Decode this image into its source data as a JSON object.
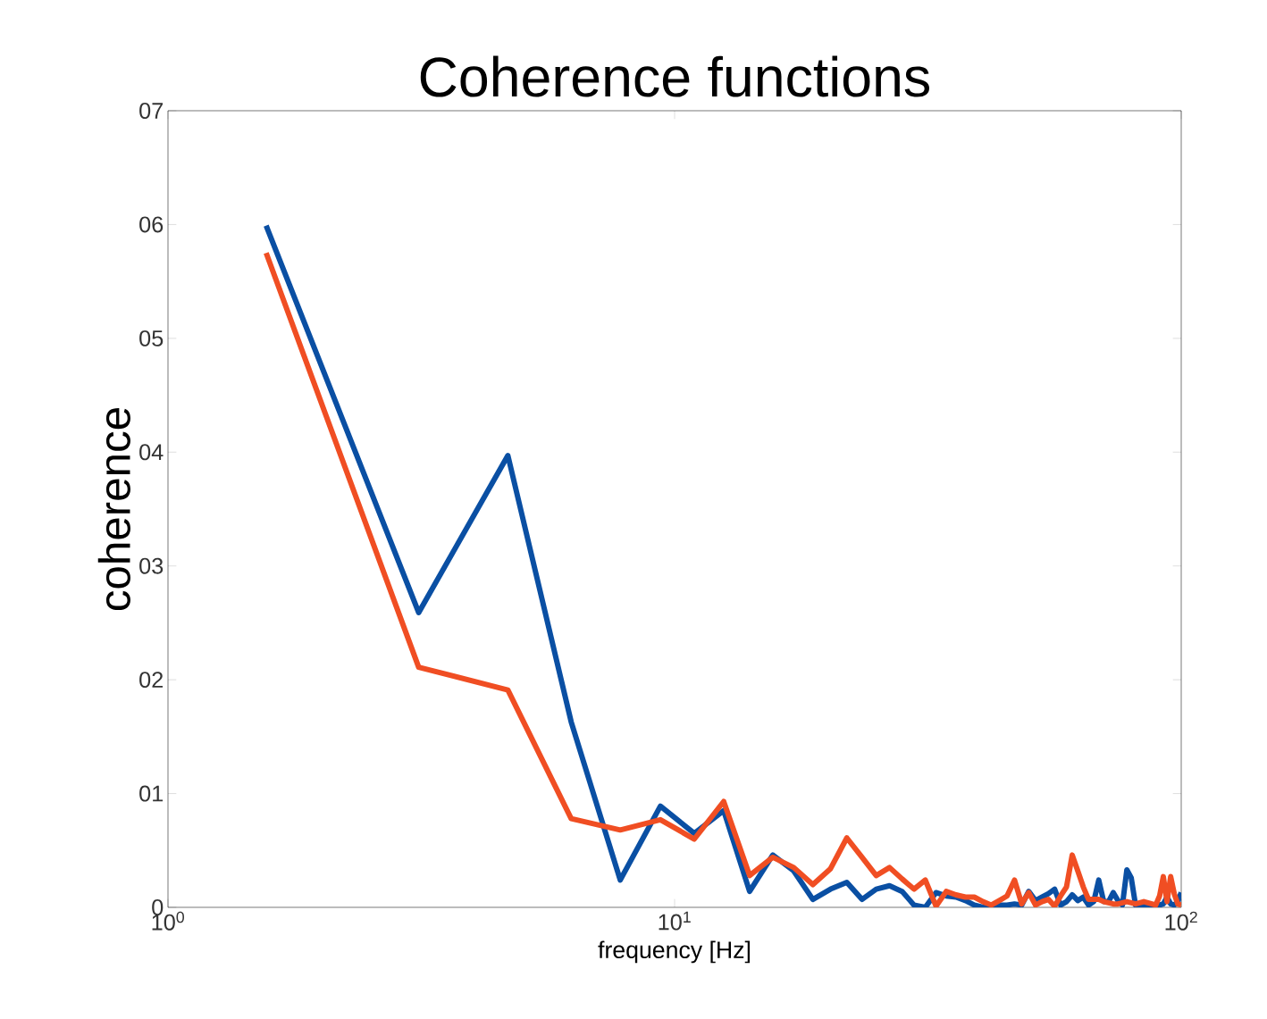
{
  "chart_data": {
    "type": "line",
    "title": "Coherence functions",
    "xlabel": "frequency [Hz]",
    "ylabel": "coherence",
    "log": "x",
    "grid": false,
    "line_style": "solid",
    "marker": "none",
    "xlim": [
      1,
      100
    ],
    "ylim": [
      0,
      7
    ],
    "xticks": [
      {
        "value": 1,
        "label": "10$^{0}$"
      },
      {
        "value": 10,
        "label": "10$^{1}$"
      },
      {
        "value": 100,
        "label": "10$^{2}$"
      }
    ],
    "yticks": [
      {
        "value": 0,
        "label": "0"
      },
      {
        "value": 1,
        "label": "01"
      },
      {
        "value": 2,
        "label": "02"
      },
      {
        "value": 3,
        "label": "03"
      },
      {
        "value": 4,
        "label": "04"
      },
      {
        "value": 5,
        "label": "05"
      },
      {
        "value": 6,
        "label": "06"
      },
      {
        "value": 7,
        "label": "07"
      }
    ],
    "x": [
      1.5625,
      3.125,
      4.6875,
      6.25,
      7.8125,
      9.375,
      10.9375,
      12.5,
      14.0625,
      15.625,
      17.1875,
      18.75,
      20.3125,
      21.875,
      23.4375,
      25,
      26.5625,
      28.125,
      29.6875,
      31.25,
      32.8125,
      34.375,
      35.9375,
      37.5,
      39.0625,
      40.625,
      42.1875,
      43.75,
      45.3125,
      46.875,
      48.4375,
      50,
      51.5625,
      53.125,
      54.6875,
      56.25,
      57.8125,
      59.375,
      60.9375,
      62.5,
      64.0625,
      65.625,
      67.1875,
      68.75,
      70.3125,
      71.875,
      73.4375,
      75,
      76.5625,
      78.125,
      79.6875,
      81.25,
      82.8125,
      84.375,
      85.9375,
      87.5,
      89.0625,
      90.625,
      92.1875,
      93.75,
      95.3125,
      96.875,
      98.4375,
      100
    ],
    "series": [
      {
        "color": "#0a4fa3",
        "values": [
          5.99,
          2.59,
          3.97,
          1.63,
          0.24,
          0.89,
          0.65,
          0.85,
          0.14,
          0.46,
          0.32,
          0.07,
          0.16,
          0.22,
          0.07,
          0.16,
          0.19,
          0.14,
          0.02,
          0.0,
          0.13,
          0.1,
          0.09,
          0.06,
          0.02,
          0.0,
          0.02,
          0.02,
          0.02,
          0.03,
          0.02,
          0.14,
          0.06,
          0.09,
          0.12,
          0.16,
          0.02,
          0.05,
          0.11,
          0.06,
          0.09,
          0.02,
          0.05,
          0.24,
          0.05,
          0.05,
          0.13,
          0.06,
          0.02,
          0.33,
          0.26,
          0.02,
          0.02,
          0.02,
          0.02,
          0.02,
          0.02,
          0.02,
          0.03,
          0.09,
          0.03,
          0.02,
          0.05,
          0.13
        ]
      },
      {
        "color": "#f04e23",
        "values": [
          5.75,
          2.11,
          1.91,
          0.78,
          0.68,
          0.77,
          0.6,
          0.93,
          0.28,
          0.44,
          0.35,
          0.2,
          0.34,
          0.61,
          0.44,
          0.28,
          0.35,
          0.25,
          0.16,
          0.24,
          0.01,
          0.14,
          0.11,
          0.09,
          0.09,
          0.05,
          0.02,
          0.06,
          0.1,
          0.24,
          0.03,
          0.13,
          0.02,
          0.05,
          0.07,
          0.01,
          0.1,
          0.18,
          0.46,
          0.32,
          0.18,
          0.07,
          0.07,
          0.07,
          0.05,
          0.04,
          0.03,
          0.03,
          0.04,
          0.05,
          0.04,
          0.03,
          0.04,
          0.05,
          0.04,
          0.03,
          0.02,
          0.1,
          0.27,
          0.05,
          0.27,
          0.12,
          0.03,
          0.02
        ]
      }
    ]
  }
}
